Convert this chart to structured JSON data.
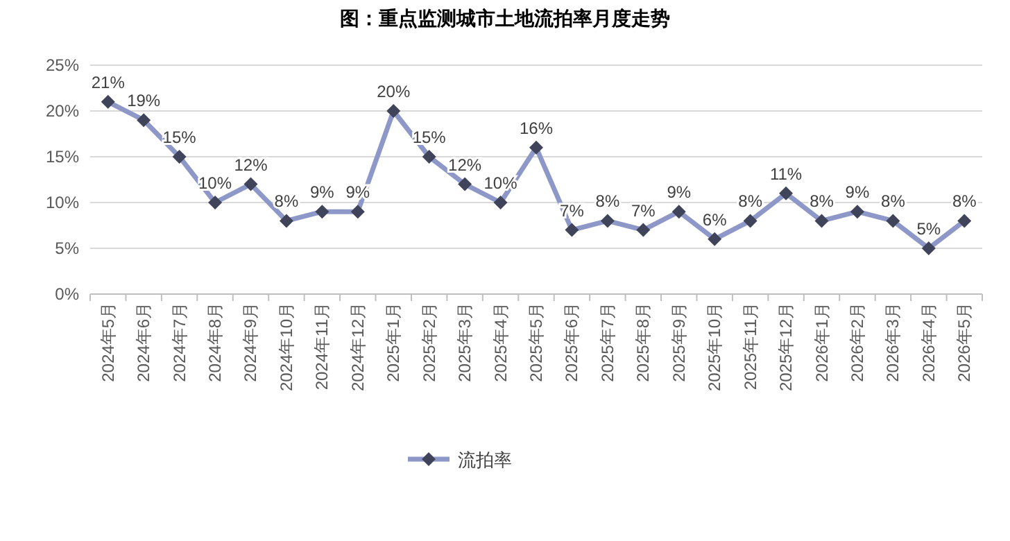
{
  "chart_data": {
    "type": "line",
    "title": "图：重点监测城市土地流拍率月度走势",
    "categories": [
      "2024年5月",
      "2024年6月",
      "2024年7月",
      "2024年8月",
      "2024年9月",
      "2024年10月",
      "2024年11月",
      "2024年12月",
      "2025年1月",
      "2025年2月",
      "2025年3月",
      "2025年4月",
      "2025年5月",
      "2025年6月",
      "2025年7月",
      "2025年8月",
      "2025年9月",
      "2025年10月",
      "2025年11月",
      "2025年12月",
      "2026年1月",
      "2026年2月",
      "2026年3月",
      "2026年4月",
      "2026年5月"
    ],
    "series": [
      {
        "name": "流拍率",
        "color": "#8e98c8",
        "values": [
          21,
          19,
          15,
          10,
          12,
          8,
          9,
          9,
          20,
          15,
          12,
          10,
          16,
          7,
          8,
          7,
          9,
          6,
          8,
          11,
          8,
          9,
          8,
          5,
          8
        ],
        "value_labels": [
          "21%",
          "19%",
          "15%",
          "10%",
          "12%",
          "8%",
          "9%",
          "9%",
          "20%",
          "15%",
          "12%",
          "10%",
          "16%",
          "7%",
          "8%",
          "7%",
          "9%",
          "6%",
          "8%",
          "11%",
          "8%",
          "9%",
          "8%",
          "5%",
          "8%"
        ]
      }
    ],
    "ylim": [
      0,
      25
    ],
    "yticks": [
      {
        "value": 0,
        "label": "0%"
      },
      {
        "value": 5,
        "label": "5%"
      },
      {
        "value": 10,
        "label": "10%"
      },
      {
        "value": 15,
        "label": "15%"
      },
      {
        "value": 20,
        "label": "20%"
      },
      {
        "value": 25,
        "label": "25%"
      }
    ],
    "grid": "y",
    "legend": "bottom",
    "marker": "diamond",
    "line_style": "solid"
  }
}
